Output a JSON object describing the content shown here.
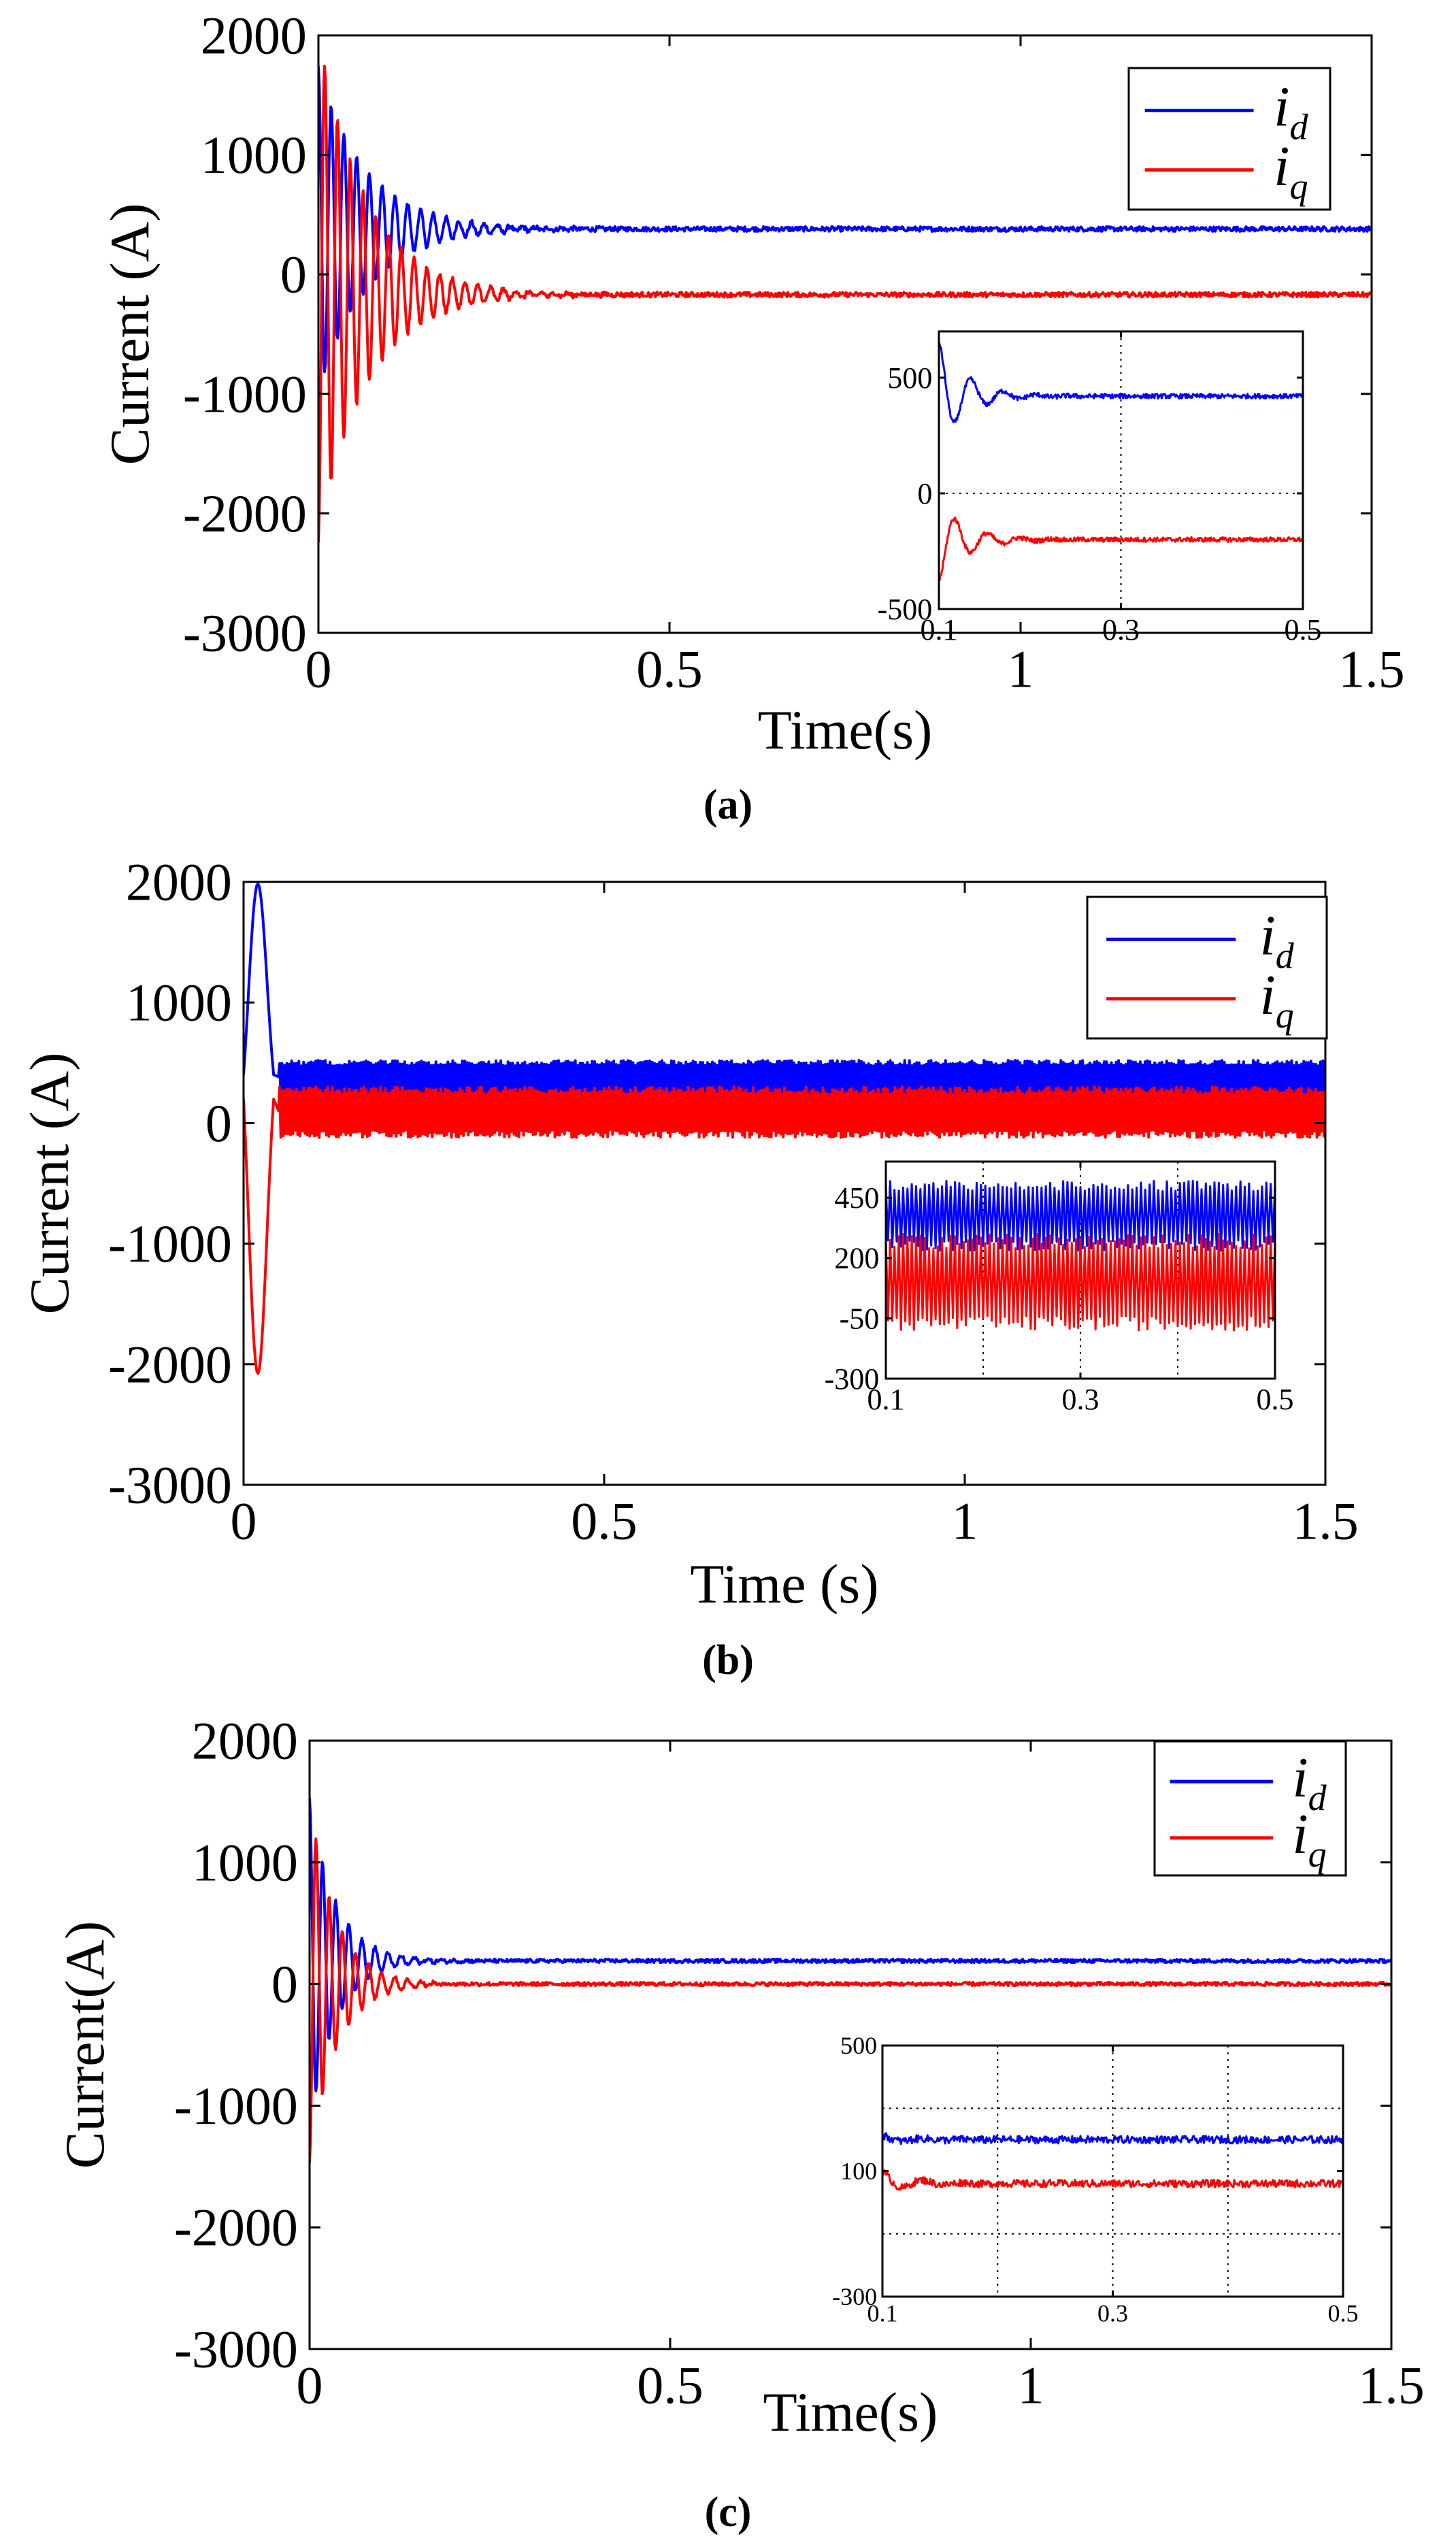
{
  "chart_data": [
    {
      "type": "line",
      "panel": "(a)",
      "xlabel": "Time(s)",
      "ylabel": "Current (A)",
      "xlim": [
        0,
        1.5
      ],
      "ylim": [
        -3000,
        2000
      ],
      "xticks": [
        0,
        0.5,
        1,
        1.5
      ],
      "xtick_labels": [
        "0",
        "0.5",
        "1",
        "1.5"
      ],
      "yticks": [
        2000,
        1000,
        0,
        -1000,
        -2000,
        -3000
      ],
      "ytick_labels": [
        "2000",
        "1000",
        "0",
        "-1000",
        "-2000",
        "-3000"
      ],
      "legend": {
        "position": "top-right",
        "entries": [
          {
            "name": "i",
            "sub": "d",
            "color": "#0000ff"
          },
          {
            "name": "i",
            "sub": "q",
            "color": "#ff0000"
          }
        ]
      },
      "series": [
        {
          "name": "i_d",
          "color": "#0000ff",
          "steady": 380,
          "start": 300,
          "peak": 1750,
          "settle": 0.15,
          "ripple": 20
        },
        {
          "name": "i_q",
          "color": "#ff0000",
          "steady": -170,
          "start": 200,
          "peak": -2300,
          "settle": 0.15,
          "ripple": 20
        }
      ],
      "inset": {
        "xlim": [
          0.1,
          0.5
        ],
        "ylim": [
          -500,
          700
        ],
        "xticks": [
          0.1,
          0.3,
          0.5
        ],
        "xtick_labels": [
          "0.1",
          "0.3",
          "0.5"
        ],
        "yticks": [
          500,
          0,
          -500
        ],
        "ytick_labels": [
          "500",
          "0",
          "-500"
        ],
        "grid_x": [
          0.3
        ],
        "grid_y": [
          0
        ],
        "series": [
          {
            "name": "i_d",
            "color": "#0000ff",
            "steady": 420,
            "start": 500,
            "peak": 640,
            "ripple": 10
          },
          {
            "name": "i_q",
            "color": "#ff0000",
            "steady": -200,
            "start": -240,
            "peak": -370,
            "ripple": 10
          }
        ]
      }
    },
    {
      "type": "line",
      "panel": "(b)",
      "xlabel": "Time (s)",
      "ylabel": "Current (A)",
      "xlim": [
        0,
        1.5
      ],
      "ylim": [
        -3000,
        2000
      ],
      "xticks": [
        0,
        0.5,
        1,
        1.5
      ],
      "xtick_labels": [
        "0",
        "0.5",
        "1",
        "1.5"
      ],
      "yticks": [
        2000,
        1000,
        0,
        -1000,
        -2000,
        -3000
      ],
      "ytick_labels": [
        "2000",
        "1000",
        "0",
        "-1000",
        "-2000",
        "-3000"
      ],
      "legend": {
        "position": "top-right",
        "entries": [
          {
            "name": "i",
            "sub": "d",
            "color": "#0000ff"
          },
          {
            "name": "i",
            "sub": "q",
            "color": "#ff0000"
          }
        ]
      },
      "series": [
        {
          "name": "i_d",
          "color": "#0000ff",
          "steady": 380,
          "start": 400,
          "peak": 2000,
          "settle": 0.05,
          "band": [
            220,
            520
          ]
        },
        {
          "name": "i_q",
          "color": "#ff0000",
          "steady": 80,
          "start": 200,
          "peak": -2100,
          "settle": 0.05,
          "band": [
            -120,
            300
          ]
        }
      ],
      "inset": {
        "xlim": [
          0.1,
          0.5
        ],
        "ylim": [
          -300,
          600
        ],
        "xticks": [
          0.1,
          0.3,
          0.5
        ],
        "xtick_labels": [
          "0.1",
          "0.3",
          "0.5"
        ],
        "yticks": [
          450,
          200,
          -50,
          -300
        ],
        "ytick_labels": [
          "450",
          "200",
          "-50",
          "-300"
        ],
        "grid_x": [
          0.2,
          0.3,
          0.4
        ],
        "grid_y": [],
        "series": [
          {
            "name": "i_d",
            "color": "#0000ff",
            "steady": 380,
            "band": [
              230,
              520
            ]
          },
          {
            "name": "i_q",
            "color": "#ff0000",
            "steady": 80,
            "band": [
              -100,
              300
            ]
          }
        ]
      }
    },
    {
      "type": "line",
      "panel": "(c)",
      "xlabel": "Time(s)",
      "ylabel": "Current(A)",
      "xlim": [
        0,
        1.5
      ],
      "ylim": [
        -3000,
        2000
      ],
      "xticks": [
        0,
        0.5,
        1,
        1.5
      ],
      "xtick_labels": [
        "0",
        "0.5",
        "1",
        "1.5"
      ],
      "yticks": [
        2000,
        1000,
        0,
        -1000,
        -2000,
        -3000
      ],
      "ytick_labels": [
        "2000",
        "1000",
        "0",
        "-1000",
        "-2000",
        "-3000"
      ],
      "legend": {
        "position": "top-right",
        "entries": [
          {
            "name": "i",
            "sub": "d",
            "color": "#0000ff"
          },
          {
            "name": "i",
            "sub": "q",
            "color": "#ff0000"
          }
        ]
      },
      "series": [
        {
          "name": "i_d",
          "color": "#0000ff",
          "steady": 190,
          "start": 100,
          "peak": 1550,
          "settle": 0.08,
          "ripple": 15
        },
        {
          "name": "i_q",
          "color": "#ff0000",
          "steady": 0,
          "start": 100,
          "peak": -1500,
          "settle": 0.08,
          "ripple": 15
        }
      ],
      "inset": {
        "xlim": [
          0.1,
          0.5
        ],
        "ylim": [
          -300,
          500
        ],
        "xticks": [
          0.1,
          0.3,
          0.5
        ],
        "xtick_labels": [
          "0.1",
          "0.3",
          "0.5"
        ],
        "yticks": [
          500,
          100,
          -300
        ],
        "ytick_labels": [
          "500",
          "100",
          "-300"
        ],
        "grid_x": [
          0.2,
          0.3,
          0.4
        ],
        "grid_y": [
          300,
          -100
        ],
        "series": [
          {
            "name": "i_d",
            "color": "#0000ff",
            "steady": 200,
            "start": 210,
            "peak": 210,
            "ripple": 12
          },
          {
            "name": "i_q",
            "color": "#ff0000",
            "steady": 60,
            "start": 90,
            "peak": 90,
            "ripple": 12
          }
        ]
      }
    }
  ]
}
